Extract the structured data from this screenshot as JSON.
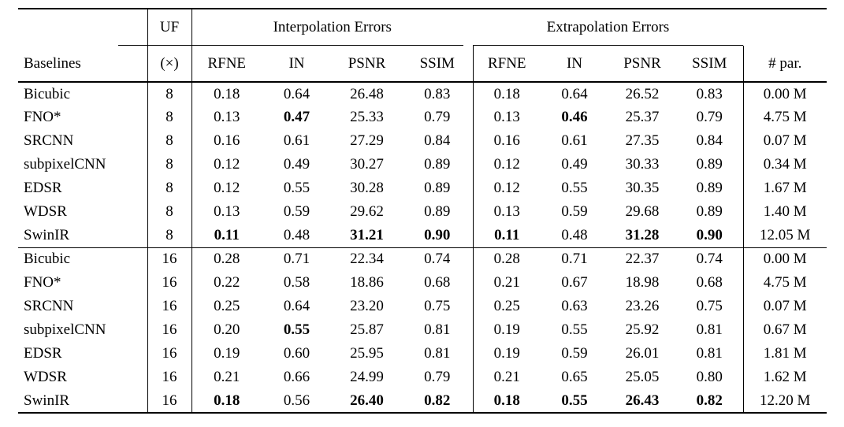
{
  "page": {
    "background_color": "#ffffff",
    "text_color": "#000000"
  },
  "table": {
    "header": {
      "baselines_label": "Baselines",
      "uf_label": "UF",
      "uf_unit": "(×)",
      "interp_group_label": "Interpolation Errors",
      "extrap_group_label": "Extrapolation Errors",
      "metric_labels": [
        "RFNE",
        "IN",
        "PSNR",
        "SSIM"
      ],
      "params_label": "# par."
    },
    "rows": [
      {
        "baseline": "Bicubic",
        "uf": "8",
        "cells": [
          "0.18",
          "0.64",
          "26.48",
          "0.83",
          "0.18",
          "0.64",
          "26.52",
          "0.83"
        ],
        "params": "0.00 M",
        "bold": []
      },
      {
        "baseline": "FNO*",
        "uf": "8",
        "cells": [
          "0.13",
          "0.47",
          "25.33",
          "0.79",
          "0.13",
          "0.46",
          "25.37",
          "0.79"
        ],
        "params": "4.75 M",
        "bold": [
          1,
          5
        ]
      },
      {
        "baseline": "SRCNN",
        "uf": "8",
        "cells": [
          "0.16",
          "0.61",
          "27.29",
          "0.84",
          "0.16",
          "0.61",
          "27.35",
          "0.84"
        ],
        "params": "0.07 M",
        "bold": []
      },
      {
        "baseline": "subpixelCNN",
        "uf": "8",
        "cells": [
          "0.12",
          "0.49",
          "30.27",
          "0.89",
          "0.12",
          "0.49",
          "30.33",
          "0.89"
        ],
        "params": "0.34 M",
        "bold": []
      },
      {
        "baseline": "EDSR",
        "uf": "8",
        "cells": [
          "0.12",
          "0.55",
          "30.28",
          "0.89",
          "0.12",
          "0.55",
          "30.35",
          "0.89"
        ],
        "params": "1.67 M",
        "bold": []
      },
      {
        "baseline": "WDSR",
        "uf": "8",
        "cells": [
          "0.13",
          "0.59",
          "29.62",
          "0.89",
          "0.13",
          "0.59",
          "29.68",
          "0.89"
        ],
        "params": "1.40 M",
        "bold": []
      },
      {
        "baseline": "SwinIR",
        "uf": "8",
        "cells": [
          "0.11",
          "0.48",
          "31.21",
          "0.90",
          "0.11",
          "0.48",
          "31.28",
          "0.90"
        ],
        "params": "12.05 M",
        "bold": [
          0,
          2,
          3,
          4,
          6,
          7
        ]
      },
      {
        "baseline": "Bicubic",
        "uf": "16",
        "cells": [
          "0.28",
          "0.71",
          "22.34",
          "0.74",
          "0.28",
          "0.71",
          "22.37",
          "0.74"
        ],
        "params": "0.00 M",
        "bold": []
      },
      {
        "baseline": "FNO*",
        "uf": "16",
        "cells": [
          "0.22",
          "0.58",
          "18.86",
          "0.68",
          "0.21",
          "0.67",
          "18.98",
          "0.68"
        ],
        "params": "4.75 M",
        "bold": []
      },
      {
        "baseline": "SRCNN",
        "uf": "16",
        "cells": [
          "0.25",
          "0.64",
          "23.20",
          "0.75",
          "0.25",
          "0.63",
          "23.26",
          "0.75"
        ],
        "params": "0.07 M",
        "bold": []
      },
      {
        "baseline": "subpixelCNN",
        "uf": "16",
        "cells": [
          "0.20",
          "0.55",
          "25.87",
          "0.81",
          "0.19",
          "0.55",
          "25.92",
          "0.81"
        ],
        "params": "0.67 M",
        "bold": [
          1
        ]
      },
      {
        "baseline": "EDSR",
        "uf": "16",
        "cells": [
          "0.19",
          "0.60",
          "25.95",
          "0.81",
          "0.19",
          "0.59",
          "26.01",
          "0.81"
        ],
        "params": "1.81 M",
        "bold": []
      },
      {
        "baseline": "WDSR",
        "uf": "16",
        "cells": [
          "0.21",
          "0.66",
          "24.99",
          "0.79",
          "0.21",
          "0.65",
          "25.05",
          "0.80"
        ],
        "params": "1.62 M",
        "bold": []
      },
      {
        "baseline": "SwinIR",
        "uf": "16",
        "cells": [
          "0.18",
          "0.56",
          "26.40",
          "0.82",
          "0.18",
          "0.55",
          "26.43",
          "0.82"
        ],
        "params": "12.20 M",
        "bold": [
          0,
          2,
          3,
          4,
          5,
          6,
          7
        ]
      }
    ]
  }
}
